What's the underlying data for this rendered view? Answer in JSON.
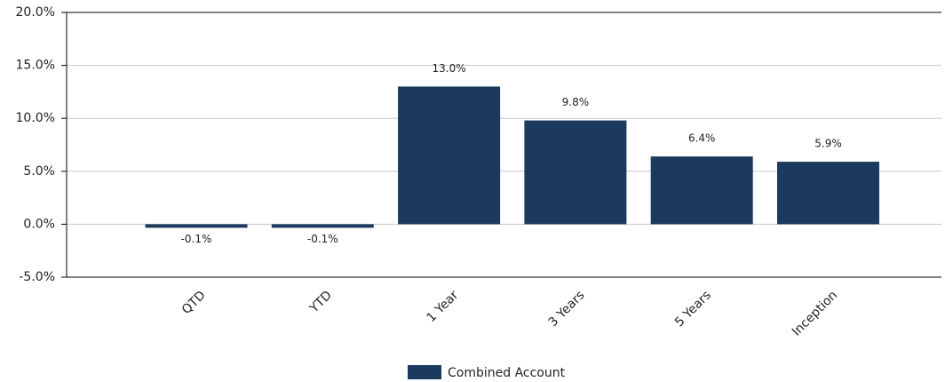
{
  "chart_data": {
    "type": "bar",
    "categories": [
      "QTD",
      "YTD",
      "1 Year",
      "3 Years",
      "5 Years",
      "Inception"
    ],
    "series": [
      {
        "name": "Combined Account",
        "color": "#1b3a5e",
        "values": [
          -0.1,
          -0.1,
          13.0,
          9.8,
          6.4,
          5.9
        ],
        "value_labels": [
          "-0.1%",
          "-0.1%",
          "13.0%",
          "9.8%",
          "6.4%",
          "5.9%"
        ]
      }
    ],
    "ylim": [
      -5,
      20
    ],
    "yticks": [
      {
        "value": -5,
        "label": "-5.0%"
      },
      {
        "value": 0,
        "label": "0.0%"
      },
      {
        "value": 5,
        "label": "5.0%"
      },
      {
        "value": 10,
        "label": "10.0%"
      },
      {
        "value": 15,
        "label": "15.0%"
      },
      {
        "value": 20,
        "label": "20.0%"
      }
    ],
    "grid": true,
    "legend": "bottom"
  }
}
